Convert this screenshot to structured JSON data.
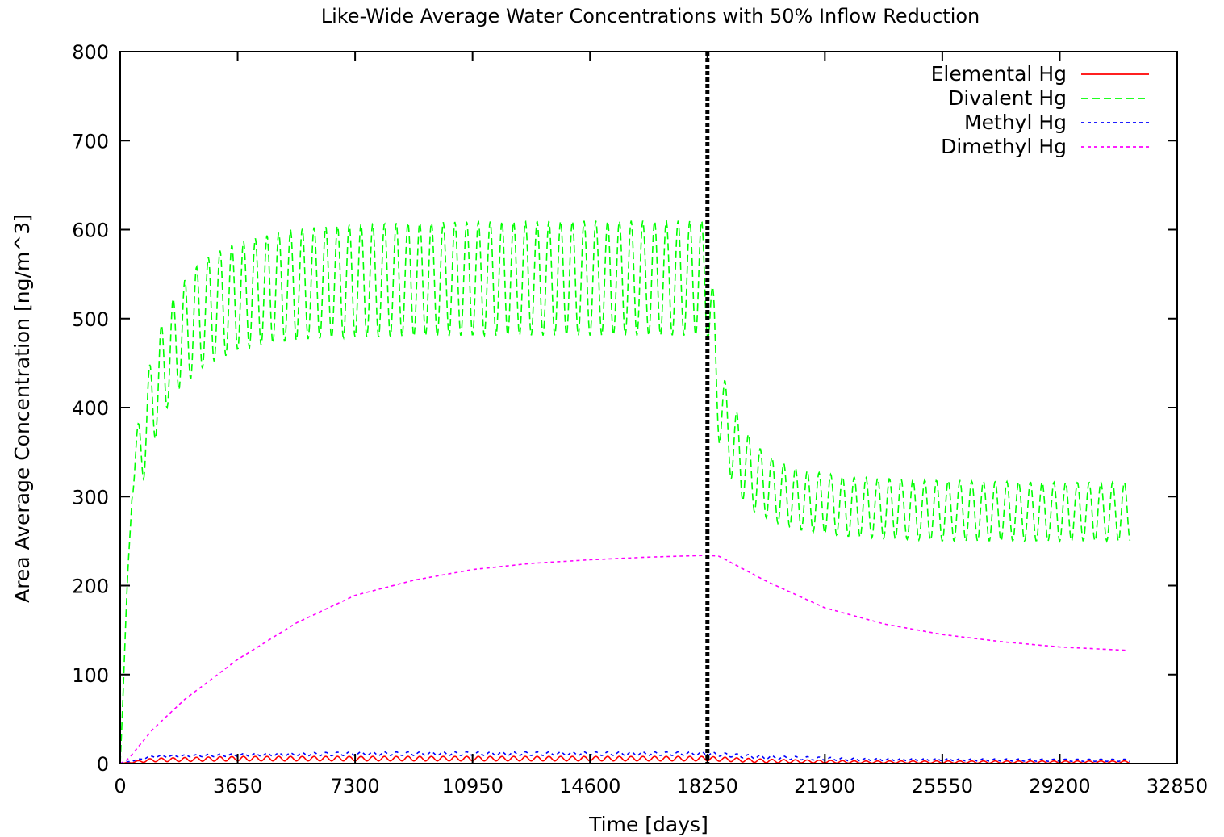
{
  "chart_data": {
    "type": "line",
    "title": "Like-Wide Average Water Concentrations with 50% Inflow Reduction",
    "xlabel": "Time [days]",
    "ylabel": "Area Average Concentration [ng/m^3]",
    "xlim": [
      0,
      32850
    ],
    "ylim": [
      0,
      800
    ],
    "x_ticks": [
      0,
      3650,
      7300,
      10950,
      14600,
      18250,
      21900,
      25550,
      29200,
      32850
    ],
    "y_ticks": [
      0,
      100,
      200,
      300,
      400,
      500,
      600,
      700,
      800
    ],
    "grid": false,
    "legend_position": "top-right",
    "marker_line": {
      "x": 18250,
      "style": "dotted",
      "color": "#000000"
    },
    "series": [
      {
        "name": "Elemental Hg",
        "color": "#ff0000",
        "dash": "solid",
        "seasonal": true,
        "x": [
          0,
          1000,
          3650,
          7300,
          10950,
          14600,
          18250,
          20000,
          23000,
          26000,
          29200,
          31390
        ],
        "min": [
          0,
          2,
          3,
          3,
          3,
          3,
          3,
          1,
          0.5,
          0.5,
          0.5,
          0.5
        ],
        "max": [
          0,
          6,
          8,
          8,
          8,
          8,
          8,
          5,
          3,
          3,
          3,
          3
        ]
      },
      {
        "name": "Divalent Hg",
        "color": "#00ff00",
        "dash": "dashed",
        "seasonal": true,
        "x": [
          0,
          365,
          730,
          1095,
          1460,
          1825,
          2190,
          2555,
          2920,
          3285,
          3650,
          4380,
          5110,
          5840,
          7300,
          9125,
          10950,
          14600,
          18250,
          18615,
          18980,
          19345,
          19710,
          20075,
          20440,
          21170,
          22630,
          25550,
          29200,
          31390
        ],
        "min": [
          0,
          300,
          320,
          365,
          400,
          420,
          432,
          444,
          452,
          458,
          465,
          470,
          474,
          477,
          479,
          480,
          481,
          481,
          481,
          360,
          320,
          295,
          283,
          276,
          270,
          262,
          255,
          250,
          250,
          250
        ],
        "max": [
          0,
          340,
          420,
          475,
          510,
          535,
          552,
          565,
          573,
          580,
          585,
          592,
          598,
          602,
          606,
          608,
          609,
          610,
          610,
          450,
          410,
          380,
          360,
          348,
          340,
          330,
          322,
          318,
          316,
          316
        ]
      },
      {
        "name": "Methyl Hg",
        "color": "#0000ff",
        "dash": "dotted",
        "seasonal": true,
        "x": [
          0,
          1000,
          3650,
          7300,
          10950,
          14600,
          18250,
          20000,
          23000,
          26000,
          29200,
          31390
        ],
        "min": [
          0,
          7,
          8,
          9,
          9,
          9,
          9,
          5,
          3,
          3,
          2.5,
          2.5
        ],
        "max": [
          0,
          9,
          11,
          13,
          13,
          13,
          13,
          9,
          6,
          5.5,
          5,
          5
        ]
      },
      {
        "name": "Dimethyl Hg",
        "color": "#ff00ff",
        "dash": "dotted",
        "x": [
          0,
          250,
          1000,
          2000,
          3650,
          5475,
          7300,
          9125,
          10950,
          12775,
          14600,
          16425,
          18250,
          18615,
          20075,
          21900,
          23725,
          25550,
          27375,
          29200,
          31390
        ],
        "values": [
          0,
          5,
          38,
          72,
          117,
          158,
          189,
          206,
          218,
          225,
          229,
          232,
          234,
          233,
          205,
          175,
          157,
          145,
          137,
          131,
          127
        ]
      }
    ]
  }
}
